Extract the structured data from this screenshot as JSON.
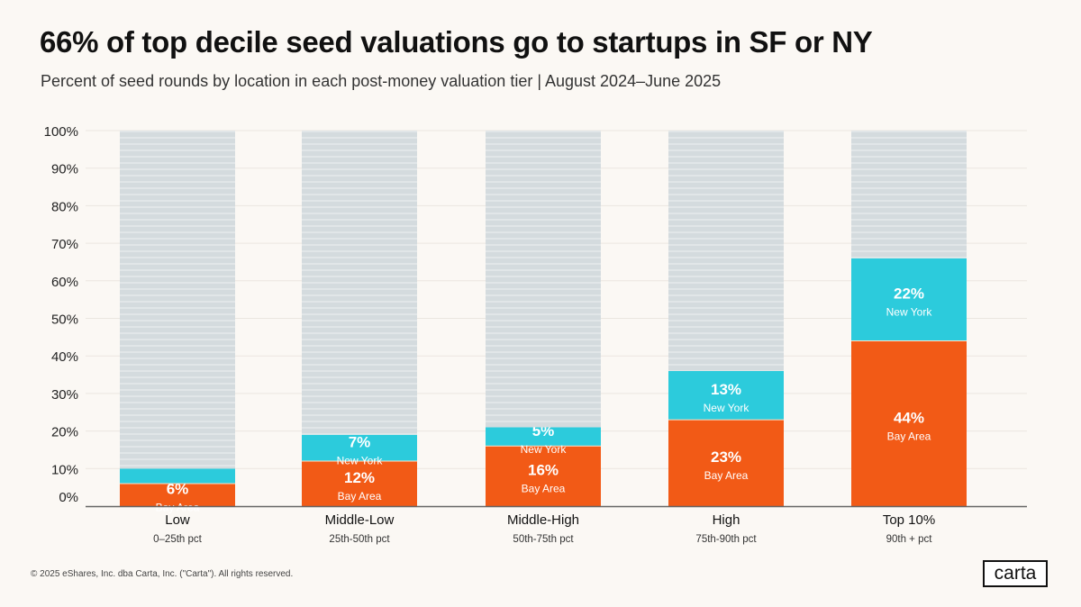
{
  "title": "66% of top decile seed valuations go to startups in SF or NY",
  "subtitle": "Percent of seed rounds by location in each post-money valuation tier | August 2024–June 2025",
  "footer": "© 2025 eShares, Inc. dba Carta, Inc. (\"Carta\"). All rights reserved.",
  "logo": "carta",
  "chart_data": {
    "type": "bar",
    "stacked": true,
    "categories": [
      "Low",
      "Middle-Low",
      "Middle-High",
      "High",
      "Top 10%"
    ],
    "category_sublabels": [
      "0–25th pct",
      "25th-50th pct",
      "50th-75th pct",
      "75th-90th pct",
      "90th + pct"
    ],
    "series": [
      {
        "name": "Bay Area",
        "values": [
          6,
          12,
          16,
          23,
          44
        ],
        "labels": [
          "6%",
          "12%",
          "16%",
          "23%",
          "44%"
        ],
        "color": "#f25a16"
      },
      {
        "name": "New York",
        "values": [
          4,
          7,
          5,
          13,
          22
        ],
        "labels": [
          null,
          "7%",
          "5%",
          "13%",
          "22%"
        ],
        "color": "#2ccbdc"
      },
      {
        "values": [
          90,
          81,
          79,
          64,
          34
        ],
        "color": "#d4dbde"
      }
    ],
    "yticks": [
      "0%",
      "10%",
      "20%",
      "30%",
      "40%",
      "50%",
      "60%",
      "70%",
      "80%",
      "90%",
      "100%"
    ],
    "ylim": [
      0,
      100
    ],
    "grid": true,
    "legend": "none"
  }
}
